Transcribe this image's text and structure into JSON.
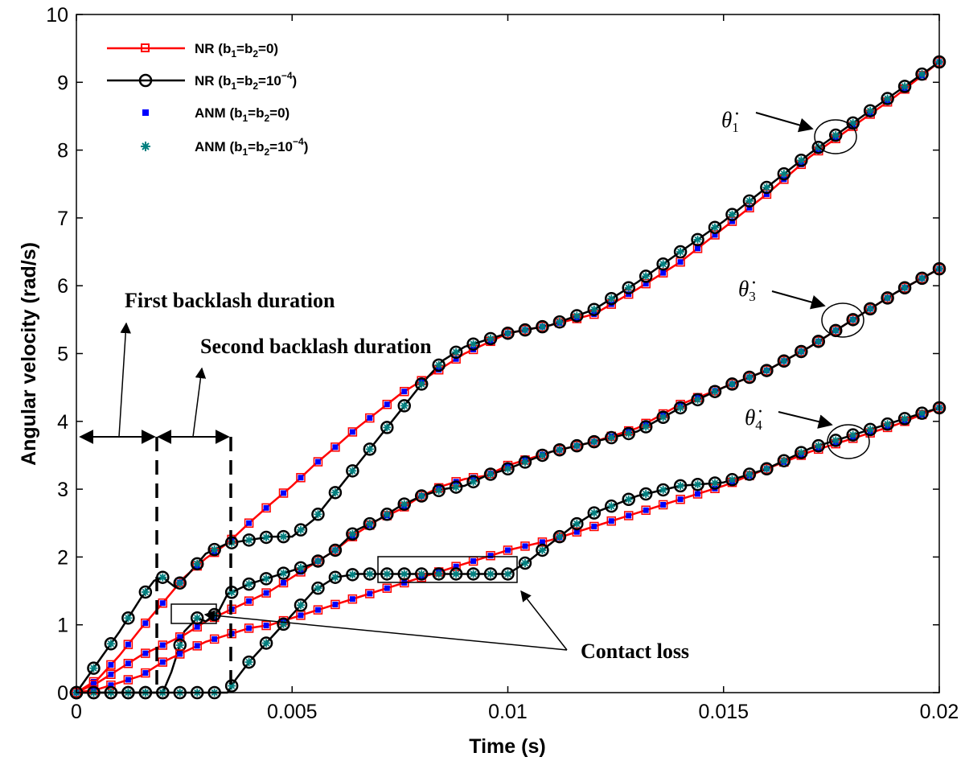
{
  "chart_data": {
    "type": "line",
    "xlabel": "Time (s)",
    "ylabel": "Angular velocity (rad/s)",
    "xlim": [
      0,
      0.02
    ],
    "ylim": [
      0,
      10
    ],
    "x_ticks": [
      0,
      0.005,
      0.01,
      0.015,
      0.02
    ],
    "x_tick_labels": [
      "0",
      "0.005",
      "0.01",
      "0.015",
      "0.02"
    ],
    "y_ticks": [
      0,
      1,
      2,
      3,
      4,
      5,
      6,
      7,
      8,
      9,
      10
    ],
    "y_tick_labels": [
      "0",
      "1",
      "2",
      "3",
      "4",
      "5",
      "6",
      "7",
      "8",
      "9",
      "10"
    ],
    "grid": false,
    "legend_position": "top-left",
    "legend": [
      {
        "key": "nr0",
        "base": "NR (b",
        "s1": "1",
        "mid": "=b",
        "s2": "2",
        "tail": "=0)",
        "sup": "",
        "end": ""
      },
      {
        "key": "nr4",
        "base": "NR (b",
        "s1": "1",
        "mid": "=b",
        "s2": "2",
        "tail": "=10",
        "sup": "−4",
        "end": ")"
      },
      {
        "key": "anm0",
        "base": "ANM (b",
        "s1": "1",
        "mid": "=b",
        "s2": "2",
        "tail": "=0)",
        "sup": "",
        "end": ""
      },
      {
        "key": "anm4",
        "base": "ANM (b",
        "s1": "1",
        "mid": "=b",
        "s2": "2",
        "tail": "=10",
        "sup": "−4",
        "end": ")"
      }
    ],
    "colors": {
      "nr0": "#ff0000",
      "nr4": "#000000",
      "anm0": "#0000ff",
      "anm4": "#008080"
    },
    "curves": [
      {
        "velocity": "theta1",
        "case": "b1=b2=0",
        "points": [
          [
            0,
            0
          ],
          [
            0.0005,
            0.2
          ],
          [
            0.001,
            0.55
          ],
          [
            0.0015,
            0.95
          ],
          [
            0.002,
            1.32
          ],
          [
            0.0025,
            1.7
          ],
          [
            0.003,
            1.98
          ],
          [
            0.0035,
            2.2
          ],
          [
            0.004,
            2.5
          ],
          [
            0.0045,
            2.78
          ],
          [
            0.005,
            3.05
          ],
          [
            0.0055,
            3.35
          ],
          [
            0.006,
            3.62
          ],
          [
            0.0065,
            3.9
          ],
          [
            0.007,
            4.15
          ],
          [
            0.0075,
            4.4
          ],
          [
            0.008,
            4.6
          ],
          [
            0.0085,
            4.8
          ],
          [
            0.009,
            5.0
          ],
          [
            0.0095,
            5.15
          ],
          [
            0.01,
            5.3
          ],
          [
            0.011,
            5.42
          ],
          [
            0.012,
            5.58
          ],
          [
            0.013,
            5.95
          ],
          [
            0.014,
            6.35
          ],
          [
            0.015,
            6.85
          ],
          [
            0.016,
            7.35
          ],
          [
            0.017,
            7.9
          ],
          [
            0.018,
            8.35
          ],
          [
            0.019,
            8.8
          ],
          [
            0.02,
            9.3
          ]
        ]
      },
      {
        "velocity": "theta1",
        "case": "b1=b2=1e-4",
        "points": [
          [
            0,
            0
          ],
          [
            0.0005,
            0.45
          ],
          [
            0.001,
            0.9
          ],
          [
            0.0015,
            1.4
          ],
          [
            0.0018,
            1.65
          ],
          [
            0.002,
            1.7
          ],
          [
            0.0023,
            1.55
          ],
          [
            0.0026,
            1.75
          ],
          [
            0.003,
            2.05
          ],
          [
            0.0035,
            2.2
          ],
          [
            0.004,
            2.25
          ],
          [
            0.0045,
            2.3
          ],
          [
            0.005,
            2.3
          ],
          [
            0.0055,
            2.55
          ],
          [
            0.006,
            2.95
          ],
          [
            0.0065,
            3.35
          ],
          [
            0.007,
            3.75
          ],
          [
            0.0075,
            4.15
          ],
          [
            0.008,
            4.55
          ],
          [
            0.0085,
            4.9
          ],
          [
            0.009,
            5.1
          ],
          [
            0.0095,
            5.2
          ],
          [
            0.01,
            5.3
          ],
          [
            0.011,
            5.42
          ],
          [
            0.012,
            5.65
          ],
          [
            0.013,
            6.05
          ],
          [
            0.014,
            6.5
          ],
          [
            0.015,
            6.95
          ],
          [
            0.016,
            7.45
          ],
          [
            0.017,
            7.95
          ],
          [
            0.018,
            8.4
          ],
          [
            0.019,
            8.85
          ],
          [
            0.02,
            9.3
          ]
        ]
      },
      {
        "velocity": "theta3",
        "case": "b1=b2=0",
        "points": [
          [
            0,
            0
          ],
          [
            0.0005,
            0.15
          ],
          [
            0.001,
            0.35
          ],
          [
            0.0015,
            0.55
          ],
          [
            0.002,
            0.7
          ],
          [
            0.0025,
            0.85
          ],
          [
            0.003,
            1.05
          ],
          [
            0.0035,
            1.2
          ],
          [
            0.004,
            1.35
          ],
          [
            0.0045,
            1.5
          ],
          [
            0.005,
            1.7
          ],
          [
            0.0055,
            1.9
          ],
          [
            0.006,
            2.1
          ],
          [
            0.0065,
            2.35
          ],
          [
            0.007,
            2.55
          ],
          [
            0.0075,
            2.7
          ],
          [
            0.008,
            2.9
          ],
          [
            0.0085,
            3.05
          ],
          [
            0.009,
            3.15
          ],
          [
            0.0095,
            3.2
          ],
          [
            0.01,
            3.35
          ],
          [
            0.011,
            3.55
          ],
          [
            0.012,
            3.7
          ],
          [
            0.013,
            3.9
          ],
          [
            0.014,
            4.25
          ],
          [
            0.015,
            4.5
          ],
          [
            0.016,
            4.75
          ],
          [
            0.017,
            5.1
          ],
          [
            0.018,
            5.5
          ],
          [
            0.019,
            5.9
          ],
          [
            0.02,
            6.25
          ]
        ]
      },
      {
        "velocity": "theta3",
        "case": "b1=b2=1e-4",
        "points": [
          [
            0,
            0
          ],
          [
            0.0005,
            0.0
          ],
          [
            0.001,
            0.0
          ],
          [
            0.0015,
            0.0
          ],
          [
            0.002,
            0.0
          ],
          [
            0.0022,
            0.3
          ],
          [
            0.0025,
            0.9
          ],
          [
            0.0028,
            1.1
          ],
          [
            0.003,
            1.05
          ],
          [
            0.0033,
            1.2
          ],
          [
            0.0035,
            1.45
          ],
          [
            0.004,
            1.6
          ],
          [
            0.0045,
            1.7
          ],
          [
            0.005,
            1.8
          ],
          [
            0.0055,
            1.9
          ],
          [
            0.006,
            2.1
          ],
          [
            0.0065,
            2.4
          ],
          [
            0.007,
            2.55
          ],
          [
            0.0075,
            2.75
          ],
          [
            0.008,
            2.9
          ],
          [
            0.0085,
            3.0
          ],
          [
            0.009,
            3.05
          ],
          [
            0.0095,
            3.2
          ],
          [
            0.01,
            3.3
          ],
          [
            0.011,
            3.55
          ],
          [
            0.012,
            3.7
          ],
          [
            0.013,
            3.85
          ],
          [
            0.014,
            4.2
          ],
          [
            0.015,
            4.5
          ],
          [
            0.016,
            4.75
          ],
          [
            0.017,
            5.1
          ],
          [
            0.018,
            5.5
          ],
          [
            0.019,
            5.9
          ],
          [
            0.02,
            6.25
          ]
        ]
      },
      {
        "velocity": "theta4",
        "case": "b1=b2=0",
        "points": [
          [
            0,
            0
          ],
          [
            0.0005,
            0.05
          ],
          [
            0.001,
            0.15
          ],
          [
            0.0015,
            0.25
          ],
          [
            0.002,
            0.45
          ],
          [
            0.0025,
            0.6
          ],
          [
            0.003,
            0.75
          ],
          [
            0.0035,
            0.85
          ],
          [
            0.004,
            0.95
          ],
          [
            0.0045,
            1.0
          ],
          [
            0.005,
            1.1
          ],
          [
            0.0055,
            1.2
          ],
          [
            0.006,
            1.3
          ],
          [
            0.0065,
            1.4
          ],
          [
            0.007,
            1.5
          ],
          [
            0.0075,
            1.6
          ],
          [
            0.008,
            1.7
          ],
          [
            0.0085,
            1.8
          ],
          [
            0.009,
            1.9
          ],
          [
            0.0095,
            2.0
          ],
          [
            0.01,
            2.1
          ],
          [
            0.011,
            2.25
          ],
          [
            0.012,
            2.45
          ],
          [
            0.013,
            2.65
          ],
          [
            0.014,
            2.85
          ],
          [
            0.015,
            3.05
          ],
          [
            0.016,
            3.3
          ],
          [
            0.017,
            3.55
          ],
          [
            0.018,
            3.75
          ],
          [
            0.019,
            3.95
          ],
          [
            0.02,
            4.2
          ]
        ]
      },
      {
        "velocity": "theta4",
        "case": "b1=b2=1e-4",
        "points": [
          [
            0,
            0
          ],
          [
            0.001,
            0.0
          ],
          [
            0.002,
            0.0
          ],
          [
            0.003,
            0.0
          ],
          [
            0.0035,
            0.0
          ],
          [
            0.0037,
            0.2
          ],
          [
            0.004,
            0.45
          ],
          [
            0.0045,
            0.8
          ],
          [
            0.005,
            1.15
          ],
          [
            0.0055,
            1.5
          ],
          [
            0.006,
            1.7
          ],
          [
            0.0065,
            1.75
          ],
          [
            0.007,
            1.75
          ],
          [
            0.0075,
            1.75
          ],
          [
            0.008,
            1.75
          ],
          [
            0.0085,
            1.75
          ],
          [
            0.009,
            1.75
          ],
          [
            0.0095,
            1.75
          ],
          [
            0.01,
            1.75
          ],
          [
            0.0105,
            1.95
          ],
          [
            0.011,
            2.2
          ],
          [
            0.0115,
            2.45
          ],
          [
            0.012,
            2.65
          ],
          [
            0.013,
            2.9
          ],
          [
            0.014,
            3.05
          ],
          [
            0.015,
            3.1
          ],
          [
            0.016,
            3.3
          ],
          [
            0.017,
            3.6
          ],
          [
            0.018,
            3.8
          ],
          [
            0.019,
            4.0
          ],
          [
            0.02,
            4.2
          ]
        ]
      }
    ],
    "annotations": {
      "theta1": {
        "sym": "θ̇",
        "sub": "1"
      },
      "theta3": {
        "sym": "θ̇",
        "sub": "3"
      },
      "theta4": {
        "sym": "θ̇",
        "sub": "4"
      },
      "first_backlash": "First backlash duration",
      "second_backlash": "Second backlash duration",
      "contact_loss": "Contact loss"
    }
  }
}
